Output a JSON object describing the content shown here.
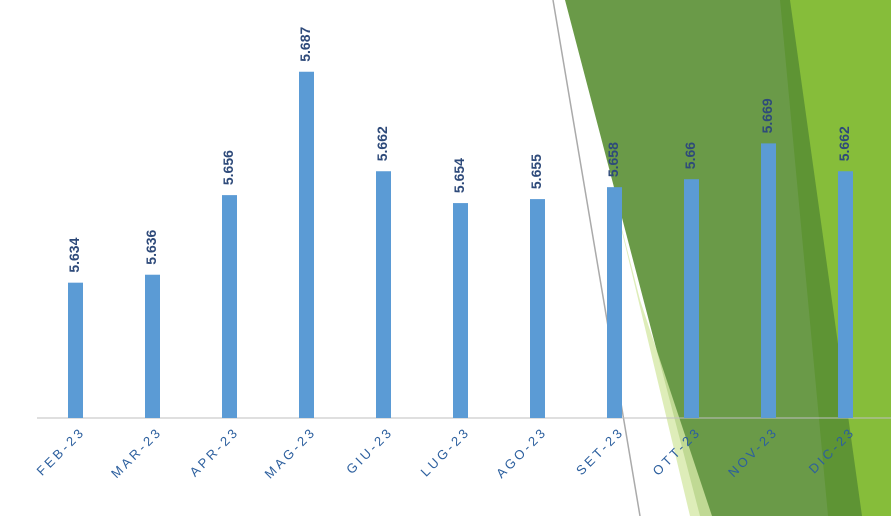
{
  "chart_data": {
    "type": "bar",
    "categories": [
      "FEB-23",
      "MAR-23",
      "APR-23",
      "MAG-23",
      "GIU-23",
      "LUG-23",
      "AGO-23",
      "SET-23",
      "OTT-23",
      "NOV-23",
      "DIC-23"
    ],
    "values": [
      5.634,
      5.636,
      5.656,
      5.687,
      5.662,
      5.654,
      5.655,
      5.658,
      5.66,
      5.669,
      5.662
    ],
    "color": "#5b9bd5",
    "ylim": [
      5.6,
      5.7
    ]
  }
}
